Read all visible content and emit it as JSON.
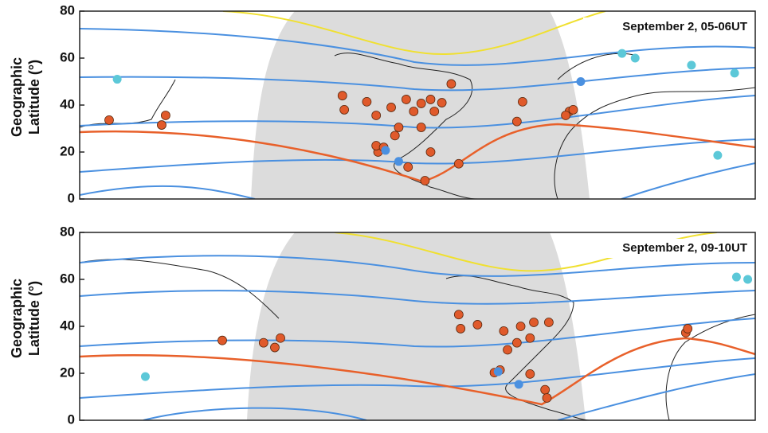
{
  "chart_data": [
    {
      "type": "scatter",
      "ylabel": [
        "Geographic",
        "Latitude (°)"
      ],
      "annotation": "September 2, 05-06UT",
      "xlim": [
        95,
        455
      ],
      "ylim": [
        0,
        80
      ],
      "yticks": [
        0,
        20,
        40,
        60,
        80
      ],
      "series": [
        {
          "color": "#e05a2b",
          "x": [
            110.7,
            138.7,
            140.8,
            235,
            236,
            248,
            253,
            261,
            269,
            273,
            277,
            282,
            284,
            293,
            288,
            277,
            265,
            263,
            254,
            253,
            257,
            270,
            279,
            297,
            282,
            331,
            328,
            356,
            358,
            354
          ],
          "y": [
            33.6,
            31.5,
            35.6,
            44,
            38,
            41.4,
            35.6,
            39,
            42.4,
            37.3,
            40.7,
            42.4,
            37.3,
            49,
            41,
            30.5,
            30.5,
            27,
            20,
            22.7,
            22,
            13.6,
            7.8,
            15,
            20,
            41.4,
            33,
            37.3,
            38,
            35.6
          ]
        },
        {
          "color": "#5cc8d8",
          "x": [
            115,
            384,
            391,
            421,
            444,
            435
          ],
          "y": [
            51,
            62,
            60,
            57,
            53.6,
            18.6
          ]
        },
        {
          "color": "#4a90e0",
          "x": [
            258,
            265,
            362
          ],
          "y": [
            20.7,
            16,
            50
          ]
        }
      ]
    },
    {
      "type": "scatter",
      "ylabel": [
        "Geographic",
        "Latitude (°)"
      ],
      "annotation": "September 2, 09-10UT",
      "xlim": [
        37,
        397
      ],
      "ylim": [
        0,
        80
      ],
      "yticks": [
        0,
        20,
        40,
        60,
        80
      ],
      "series": [
        {
          "color": "#e05a2b",
          "x": [
            113,
            135,
            141,
            144,
            239,
            240,
            249,
            263,
            272,
            277,
            279,
            287,
            265,
            270,
            258,
            261,
            277,
            285,
            286,
            360,
            361
          ],
          "y": [
            34,
            33,
            31,
            35,
            45,
            39,
            40.7,
            38,
            40,
            35,
            41.7,
            41.7,
            30,
            33,
            20.3,
            21.4,
            19.7,
            13,
            9.5,
            37.3,
            39
          ]
        },
        {
          "color": "#5cc8d8",
          "x": [
            72,
            387,
            393
          ],
          "y": [
            18.6,
            61,
            60
          ]
        },
        {
          "color": "#4a90e0",
          "x": [
            260,
            271
          ],
          "y": [
            20.7,
            15.3
          ]
        }
      ]
    }
  ]
}
